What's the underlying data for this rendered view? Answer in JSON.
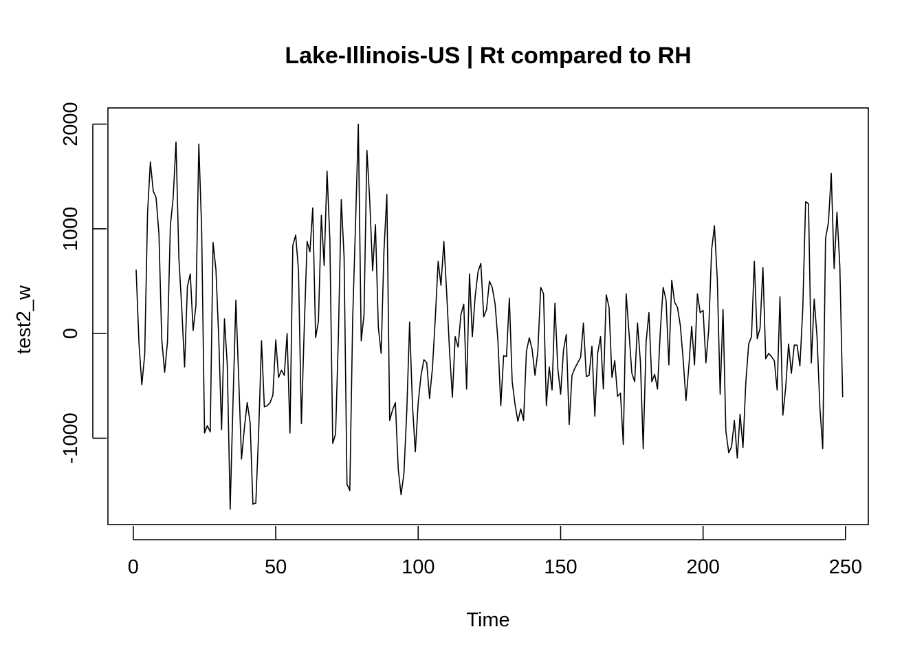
{
  "chart_data": {
    "type": "line",
    "title": "Lake-Illinois-US | Rt compared to RH",
    "xlabel": "Time",
    "ylabel": "test2_w",
    "xlim": [
      -8.9,
      258
    ],
    "ylim": [
      -1825,
      2155
    ],
    "x_ticks": [
      0,
      50,
      100,
      150,
      200,
      250
    ],
    "y_ticks": [
      -1000,
      0,
      1000,
      2000
    ],
    "x_tick_labels": [
      "0",
      "50",
      "100",
      "150",
      "200",
      "250"
    ],
    "y_tick_labels": [
      "-1000",
      "0",
      "1000",
      "2000"
    ],
    "grid": false,
    "legend": "none",
    "x_start": 1,
    "x_step": 1,
    "series": [
      {
        "values": [
          610,
          -100,
          -490,
          -200,
          1150,
          1640,
          1360,
          1300,
          950,
          -60,
          -370,
          -80,
          1030,
          1300,
          1830,
          720,
          250,
          -320,
          450,
          570,
          30,
          270,
          1810,
          1000,
          -950,
          -880,
          -940,
          870,
          610,
          -50,
          -920,
          140,
          -300,
          -1680,
          -660,
          320,
          -430,
          -1200,
          -900,
          -660,
          -850,
          -1630,
          -1620,
          -950,
          -70,
          -700,
          -690,
          -660,
          -590,
          -60,
          -420,
          -350,
          -400,
          0,
          -950,
          840,
          940,
          600,
          -860,
          40,
          880,
          780,
          1200,
          -40,
          120,
          1130,
          650,
          1550,
          900,
          -1050,
          -960,
          -30,
          1280,
          730,
          -1440,
          -1500,
          140,
          1040,
          2000,
          -70,
          180,
          1750,
          1270,
          600,
          1040,
          60,
          -190,
          790,
          1330,
          -830,
          -730,
          -660,
          -1300,
          -1540,
          -1340,
          -740,
          110,
          -690,
          -1130,
          -660,
          -400,
          -250,
          -280,
          -620,
          -330,
          140,
          690,
          460,
          880,
          390,
          -170,
          -610,
          -30,
          -130,
          180,
          280,
          -530,
          570,
          -30,
          350,
          590,
          670,
          160,
          230,
          500,
          440,
          280,
          -70,
          -690,
          -210,
          -220,
          340,
          -460,
          -680,
          -840,
          -720,
          -830,
          -170,
          -40,
          -150,
          -400,
          -170,
          440,
          380,
          -690,
          -320,
          -540,
          290,
          -330,
          -580,
          -160,
          -10,
          -870,
          -400,
          -330,
          -280,
          -230,
          100,
          -410,
          -400,
          -120,
          -790,
          -190,
          -30,
          -530,
          370,
          250,
          -420,
          -260,
          -600,
          -570,
          -1060,
          380,
          10,
          -380,
          -460,
          100,
          -270,
          -1100,
          -80,
          200,
          -460,
          -390,
          -530,
          30,
          440,
          320,
          -300,
          510,
          300,
          250,
          80,
          -240,
          -640,
          -320,
          70,
          -300,
          380,
          200,
          220,
          -280,
          40,
          800,
          1030,
          510,
          -580,
          230,
          -930,
          -1140,
          -1080,
          -830,
          -1190,
          -770,
          -1090,
          -470,
          -100,
          -30,
          690,
          -50,
          50,
          630,
          -240,
          -190,
          -220,
          -260,
          -540,
          350,
          -780,
          -520,
          -100,
          -380,
          -110,
          -110,
          -310,
          240,
          1260,
          1240,
          -280,
          330,
          -30,
          -710,
          -1100,
          910,
          1060,
          1530,
          620,
          1160,
          640,
          -610
        ]
      }
    ]
  }
}
